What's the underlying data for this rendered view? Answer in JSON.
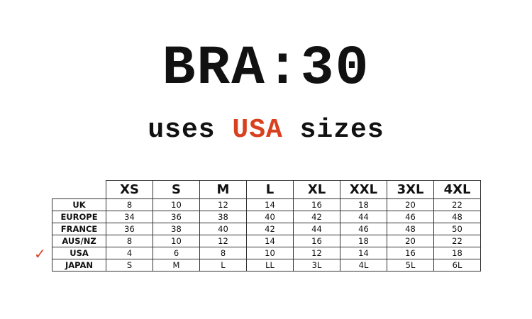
{
  "title": "BRA:30",
  "subtitle": {
    "before": "uses ",
    "highlight": "USA",
    "after": " sizes"
  },
  "colors": {
    "accent": "#d9401f",
    "text": "#111111"
  },
  "marker": {
    "icon": "checkmark-icon",
    "row": "USA"
  },
  "table": {
    "headers": [
      "XS",
      "S",
      "M",
      "L",
      "XL",
      "XXL",
      "3XL",
      "4XL"
    ],
    "rows": [
      {
        "label": "UK",
        "values": [
          "8",
          "10",
          "12",
          "14",
          "16",
          "18",
          "20",
          "22"
        ]
      },
      {
        "label": "EUROPE",
        "values": [
          "34",
          "36",
          "38",
          "40",
          "42",
          "44",
          "46",
          "48"
        ]
      },
      {
        "label": "FRANCE",
        "values": [
          "36",
          "38",
          "40",
          "42",
          "44",
          "46",
          "48",
          "50"
        ]
      },
      {
        "label": "AUS/NZ",
        "values": [
          "8",
          "10",
          "12",
          "14",
          "16",
          "18",
          "20",
          "22"
        ]
      },
      {
        "label": "USA",
        "values": [
          "4",
          "6",
          "8",
          "10",
          "12",
          "14",
          "16",
          "18"
        ]
      },
      {
        "label": "JAPAN",
        "values": [
          "S",
          "M",
          "L",
          "LL",
          "3L",
          "4L",
          "5L",
          "6L"
        ]
      }
    ]
  }
}
